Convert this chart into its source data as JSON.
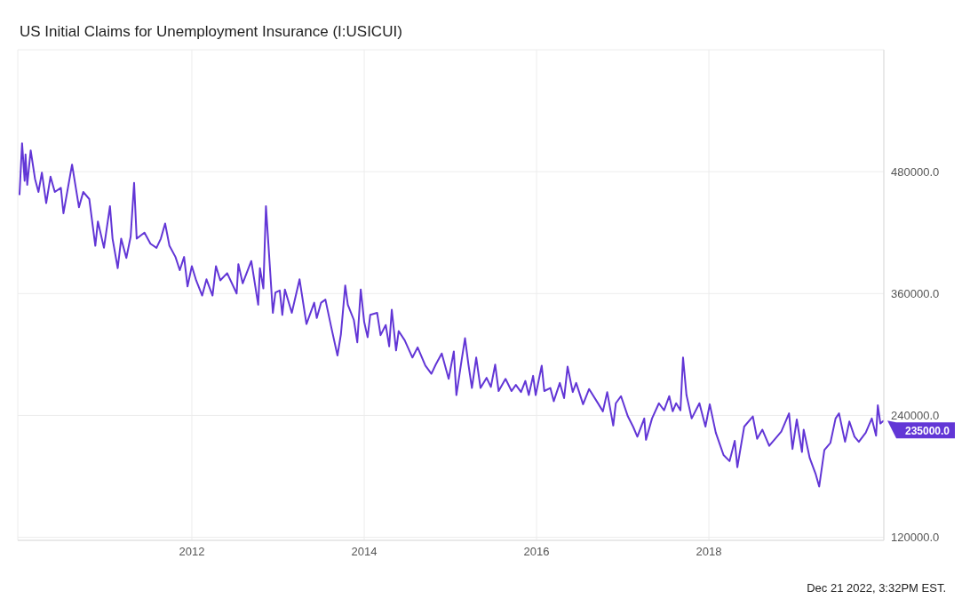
{
  "chart_data": {
    "type": "line",
    "title": "US Initial Claims for Unemployment Insurance (I:USICUI)",
    "x": [
      2010.0,
      2010.03,
      2010.06,
      2010.07,
      2010.09,
      2010.13,
      2010.18,
      2010.22,
      2010.26,
      2010.31,
      2010.36,
      2010.41,
      2010.48,
      2010.51,
      2010.61,
      2010.65,
      2010.69,
      2010.74,
      2010.81,
      2010.88,
      2010.91,
      2010.98,
      2011.05,
      2011.08,
      2011.14,
      2011.18,
      2011.24,
      2011.29,
      2011.33,
      2011.36,
      2011.45,
      2011.52,
      2011.59,
      2011.64,
      2011.69,
      2011.74,
      2011.81,
      2011.86,
      2011.91,
      2011.95,
      2012.0,
      2012.05,
      2012.12,
      2012.17,
      2012.24,
      2012.28,
      2012.33,
      2012.41,
      2012.52,
      2012.54,
      2012.59,
      2012.69,
      2012.77,
      2012.79,
      2012.83,
      2012.86,
      2012.94,
      2012.97,
      2013.02,
      2013.05,
      2013.08,
      2013.16,
      2013.25,
      2013.33,
      2013.42,
      2013.45,
      2013.5,
      2013.55,
      2013.62,
      2013.69,
      2013.73,
      2013.78,
      2013.81,
      2013.88,
      2013.92,
      2013.96,
      2014.0,
      2014.04,
      2014.07,
      2014.15,
      2014.19,
      2014.25,
      2014.29,
      2014.32,
      2014.37,
      2014.4,
      2014.47,
      2014.56,
      2014.62,
      2014.71,
      2014.78,
      2014.83,
      2014.9,
      2014.98,
      2015.04,
      2015.07,
      2015.13,
      2015.17,
      2015.21,
      2015.25,
      2015.3,
      2015.35,
      2015.42,
      2015.47,
      2015.52,
      2015.56,
      2015.64,
      2015.71,
      2015.76,
      2015.82,
      2015.87,
      2015.91,
      2015.96,
      2015.99,
      2016.06,
      2016.09,
      2016.16,
      2016.2,
      2016.27,
      2016.32,
      2016.36,
      2016.42,
      2016.46,
      2016.54,
      2016.61,
      2016.72,
      2016.77,
      2016.82,
      2016.89,
      2016.92,
      2016.98,
      2017.06,
      2017.12,
      2017.17,
      2017.25,
      2017.27,
      2017.34,
      2017.42,
      2017.48,
      2017.54,
      2017.58,
      2017.62,
      2017.67,
      2017.7,
      2017.74,
      2017.8,
      2017.89,
      2017.96,
      2018.01,
      2018.08,
      2018.17,
      2018.24,
      2018.3,
      2018.33,
      2018.41,
      2018.51,
      2018.56,
      2018.62,
      2018.7,
      2018.79,
      2018.84,
      2018.93,
      2018.97,
      2019.02,
      2019.08,
      2019.1,
      2019.17,
      2019.24,
      2019.28,
      2019.34,
      2019.41,
      2019.47,
      2019.51,
      2019.58,
      2019.63,
      2019.69,
      2019.74,
      2019.82,
      2019.89,
      2019.94,
      2019.96,
      2019.99,
      2020.03
    ],
    "series": [
      {
        "color": "#6236d6",
        "values": [
          457000,
          508000,
          471000,
          497000,
          467000,
          501000,
          473000,
          460000,
          479000,
          449000,
          475000,
          460000,
          464000,
          439000,
          487000,
          466000,
          445000,
          460000,
          453000,
          407000,
          431000,
          405000,
          446000,
          414000,
          385000,
          414000,
          395000,
          416000,
          469000,
          414000,
          420000,
          409000,
          405000,
          414000,
          429000,
          407000,
          396000,
          383000,
          396000,
          367000,
          387000,
          373000,
          358000,
          374000,
          358000,
          387000,
          373000,
          380000,
          360000,
          389000,
          370000,
          392000,
          349000,
          385000,
          365000,
          446000,
          341000,
          361000,
          363000,
          339000,
          364000,
          341000,
          374000,
          330000,
          351000,
          336000,
          351000,
          354000,
          326000,
          299000,
          320000,
          368000,
          349000,
          334000,
          312000,
          364000,
          332000,
          317000,
          339000,
          341000,
          319000,
          329000,
          308000,
          344000,
          304000,
          323000,
          314000,
          297000,
          307000,
          289000,
          281000,
          290000,
          301000,
          276000,
          303000,
          260000,
          294000,
          316000,
          290000,
          267000,
          297000,
          267000,
          277000,
          268000,
          290000,
          264000,
          276000,
          264000,
          270000,
          263000,
          274000,
          260000,
          279000,
          260000,
          289000,
          264000,
          267000,
          254000,
          272000,
          257000,
          288000,
          263000,
          272000,
          251000,
          266000,
          251000,
          244000,
          263000,
          230000,
          252000,
          259000,
          239000,
          229000,
          219000,
          237000,
          216000,
          237000,
          252000,
          245000,
          259000,
          244000,
          252000,
          245000,
          297000,
          260000,
          237000,
          252000,
          229000,
          251000,
          223000,
          201000,
          195000,
          215000,
          189000,
          229000,
          239000,
          217000,
          226000,
          210000,
          219000,
          224000,
          242000,
          207000,
          236000,
          204000,
          226000,
          198000,
          182000,
          170000,
          206000,
          213000,
          237000,
          242000,
          214000,
          234000,
          219000,
          214000,
          223000,
          237000,
          220000,
          250000,
          232000,
          235000
        ]
      }
    ],
    "xlim": [
      2009.98,
      2020.03
    ],
    "xticks": [
      2012,
      2014,
      2016,
      2018
    ],
    "ylim": [
      117000,
      600000
    ],
    "yticks": [
      {
        "value": 120000,
        "label": "120000.0"
      },
      {
        "value": 240000,
        "label": "240000.0"
      },
      {
        "value": 360000,
        "label": "360000.0"
      },
      {
        "value": 480000,
        "label": "480000.0"
      }
    ],
    "grid": true,
    "annotations": [
      {
        "text": "235000.0",
        "x": 2020.03,
        "y": 235000
      },
      "Dec 21 2022, 3:32PM EST."
    ]
  }
}
